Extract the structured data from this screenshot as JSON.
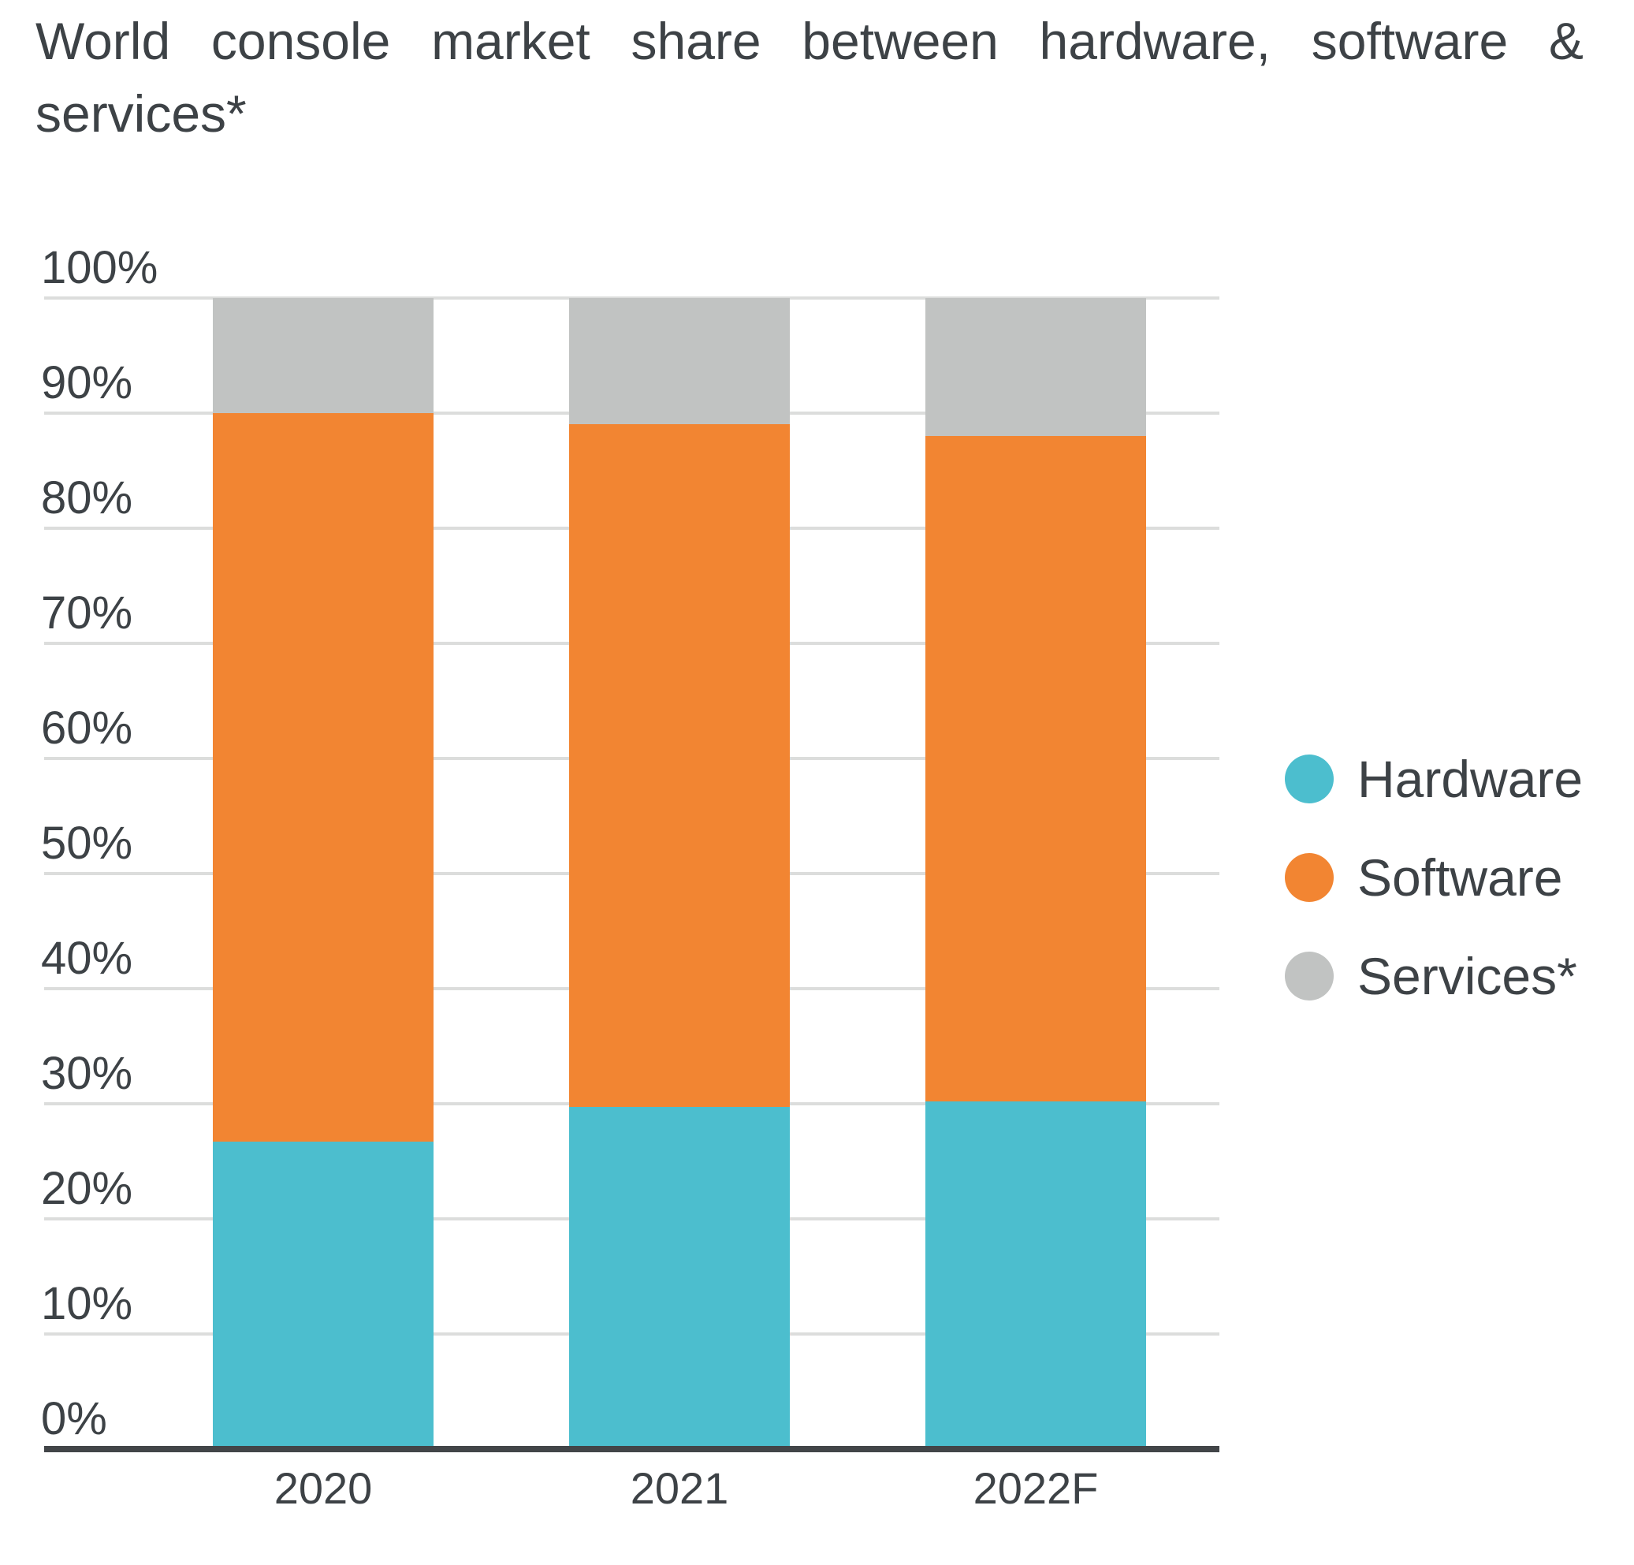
{
  "title": {
    "line1": "World console market share between hardware, software &",
    "line2": "services*"
  },
  "chart_data": {
    "type": "bar",
    "stacked": true,
    "title": "World console market share between hardware, software & services*",
    "categories": [
      "2020",
      "2021",
      "2022F"
    ],
    "series": [
      {
        "name": "Hardware",
        "color": "#4CBECE",
        "values": [
          26.5,
          29.5,
          30
        ]
      },
      {
        "name": "Software",
        "color": "#F28532",
        "values": [
          63.5,
          59.5,
          58
        ]
      },
      {
        "name": "Services*",
        "color": "#C1C3C2",
        "values": [
          10,
          11,
          12
        ]
      }
    ],
    "y_axis": {
      "min": 0,
      "max": 100,
      "step": 10,
      "tick_suffix": "%",
      "tick_labels": [
        "0%",
        "10%",
        "20%",
        "30%",
        "40%",
        "50%",
        "60%",
        "70%",
        "80%",
        "90%",
        "100%"
      ]
    },
    "x_axis": {
      "labels": [
        "2020",
        "2021",
        "2022F"
      ]
    },
    "grid": true,
    "legend": {
      "position": "right",
      "items": [
        "Hardware",
        "Software",
        "Services*"
      ]
    }
  },
  "colors": {
    "text": "#3D4246",
    "gridline": "#DCDDDC",
    "axis_line": "#424548",
    "background": "#FFFFFF"
  }
}
